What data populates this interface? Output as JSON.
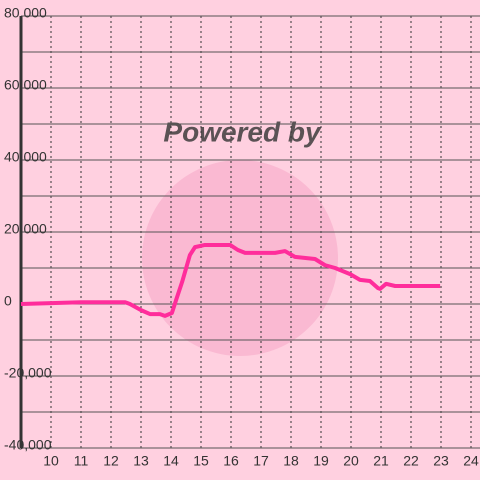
{
  "chart_data": {
    "type": "line",
    "watermark": "Powered by",
    "xlim": [
      9,
      24.3
    ],
    "xticks": [
      10,
      11,
      12,
      13,
      14,
      15,
      16,
      17,
      18,
      19,
      20,
      21,
      22,
      23,
      24
    ],
    "ylim": [
      -40000,
      80000
    ],
    "yticks": [
      {
        "value": 80000,
        "label": "80,000"
      },
      {
        "value": 60000,
        "label": "60,000"
      },
      {
        "value": 40000,
        "label": "40,000"
      },
      {
        "value": 20000,
        "label": "20,000"
      },
      0,
      {
        "value": -20000,
        "label": "-20,000"
      },
      {
        "value": -40000,
        "label": "-40,000"
      }
    ],
    "y_minor_ticks": [
      70000,
      50000,
      30000,
      10000,
      -10000,
      -30000
    ],
    "grid": true,
    "series": [
      {
        "color": "#ff2d9b",
        "x": [
          9,
          11,
          12.47,
          12.63,
          13,
          13.3,
          13.63,
          13.8,
          14.03,
          14.17,
          14.37,
          14.63,
          14.8,
          15.13,
          15.97,
          16.23,
          16.47,
          17.47,
          17.8,
          18.13,
          18.8,
          19.13,
          19.47,
          19.97,
          20.3,
          20.63,
          20.9,
          20.97,
          21.17,
          21.47,
          22.97
        ],
        "values": [
          0,
          500,
          500,
          0,
          -1700,
          -2800,
          -2800,
          -3300,
          -2500,
          1100,
          6100,
          13600,
          15800,
          16400,
          16400,
          15000,
          14200,
          14200,
          14700,
          13100,
          12500,
          10800,
          10000,
          8300,
          6700,
          6400,
          4400,
          4200,
          5600,
          5000,
          5000
        ]
      }
    ]
  }
}
